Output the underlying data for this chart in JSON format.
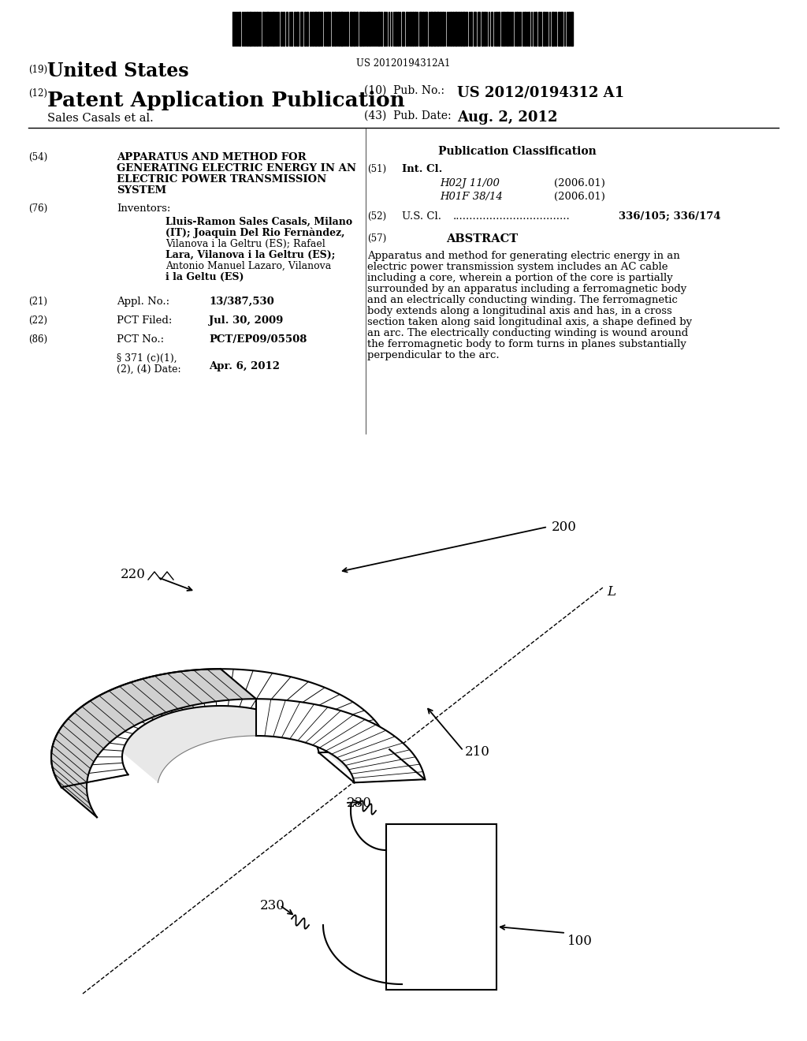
{
  "background_color": "#ffffff",
  "barcode_text": "US 20120194312A1",
  "pub_no_value": "US 2012/0194312 A1",
  "pub_date_value": "Aug. 2, 2012",
  "title54_text": "APPARATUS AND METHOD FOR\nGENERATING ELECTRIC ENERGY IN AN\nELECTRIC POWER TRANSMISSION\nSYSTEM",
  "inventors76_text": "Lluis-Ramon Sales Casals, Milano\n(IT); Joaquin Del Rio Fernàndez,\nVilanova i la Geltru (ES); Rafael\nLara, Vilanova i la Geltru (ES);\nAntonio Manuel Lazaro, Vilanova\ni la Geltu (ES)",
  "appl_no_value": "13/387,530",
  "pct_filed_value": "Jul. 30, 2009",
  "pct_no_value": "PCT/EP09/05508",
  "section371_value": "Apr. 6, 2012",
  "int_cl_h02j": "H02J 11/00",
  "int_cl_h02j_date": "(2006.01)",
  "int_cl_h01f": "H01F 38/14",
  "int_cl_h01f_date": "(2006.01)",
  "us_cl_value": "336/105; 336/174",
  "abstract_text": "Apparatus and method for generating electric energy in an\nelectric power transmission system includes an AC cable\nincluding a core, wherein a portion of the core is partially\nsurrounded by an apparatus including a ferromagnetic body\nand an electrically conducting winding. The ferromagnetic\nbody extends along a longitudinal axis and has, in a cross\nsection taken along said longitudinal axis, a shape defined by\nan arc. The electrically conducting winding is wound around\nthe ferromagnetic body to form turns in planes substantially\nperpendicular to the arc."
}
